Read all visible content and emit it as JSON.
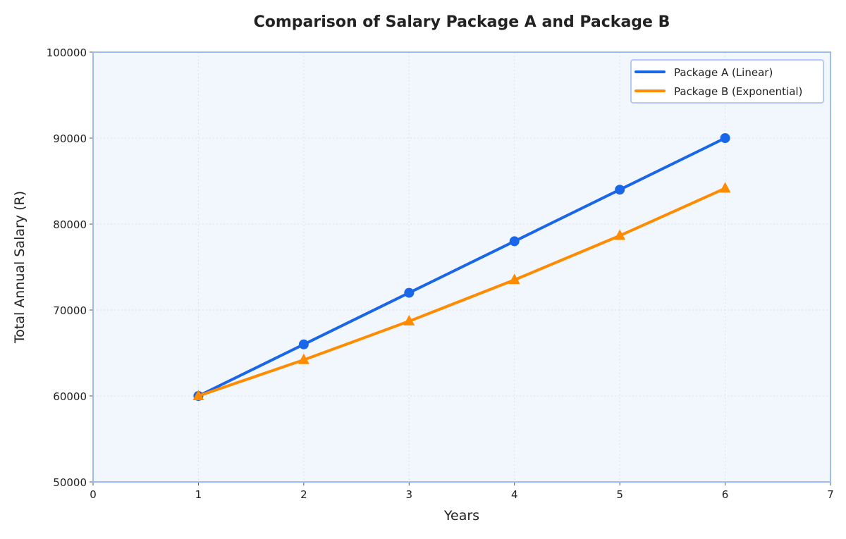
{
  "chart_data": {
    "type": "line",
    "title": "Comparison of Salary Package A and Package B",
    "xlabel": "Years",
    "ylabel": "Total Annual Salary (R)",
    "xlim": [
      0,
      7
    ],
    "ylim": [
      50000,
      100000
    ],
    "xticks": [
      0,
      1,
      2,
      3,
      4,
      5,
      6,
      7
    ],
    "yticks": [
      50000,
      60000,
      70000,
      80000,
      90000,
      100000
    ],
    "grid": true,
    "legend_position": "top-right",
    "background_color": "#f2f7fd",
    "frame_color": "#9dbcf0",
    "x": [
      1,
      2,
      3,
      4,
      5,
      6
    ],
    "series": [
      {
        "name": "Package A (Linear)",
        "values": [
          60000,
          66000,
          72000,
          78000,
          84000,
          90000
        ],
        "color": "#1a66e8",
        "marker": "circle"
      },
      {
        "name": "Package B (Exponential)",
        "values": [
          60000,
          64200,
          68694,
          73503,
          78648,
          84153
        ],
        "color": "#ff8c00",
        "marker": "triangle"
      }
    ]
  }
}
